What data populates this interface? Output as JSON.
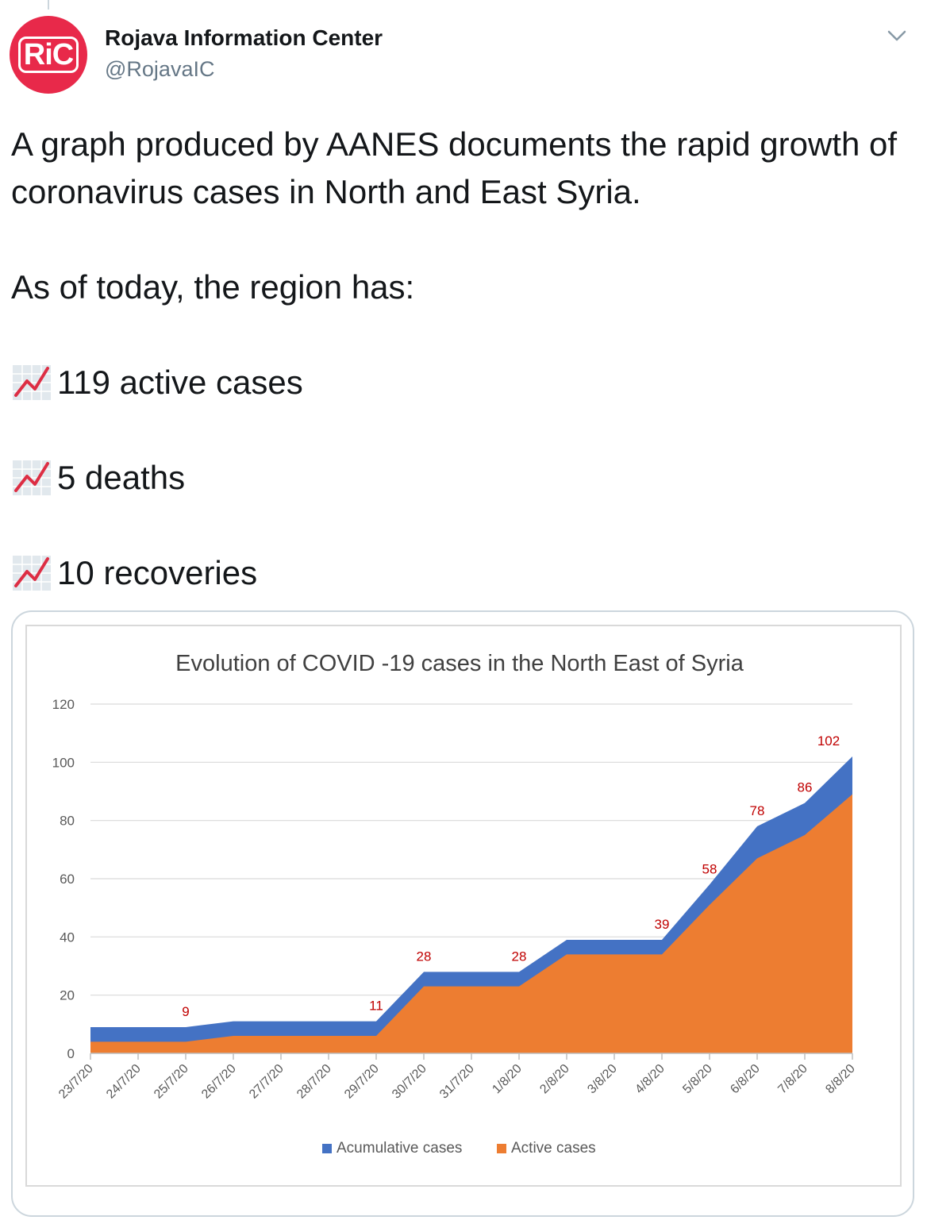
{
  "tweet": {
    "author_name": "Rojava Information Center",
    "handle": "@RojavaIC",
    "avatar_text": "RiC",
    "avatar_color": "#e8294a",
    "paragraphs": [
      "A graph produced by AANES documents the rapid growth of coronavirus cases in North and East Syria.",
      "As of today, the region has:"
    ],
    "stats": [
      {
        "icon": "chart-increasing-icon",
        "text": "119 active cases"
      },
      {
        "icon": "chart-increasing-icon",
        "text": "5 deaths"
      },
      {
        "icon": "chart-increasing-icon",
        "text": "10 recoveries"
      }
    ]
  },
  "chart_data": {
    "type": "area",
    "title": "Evolution of COVID -19 cases in the North East of Syria",
    "categories": [
      "23/7/20",
      "24/7/20",
      "25/7/20",
      "26/7/20",
      "27/7/20",
      "28/7/20",
      "29/7/20",
      "30/7/20",
      "31/7/20",
      "1/8/20",
      "2/8/20",
      "3/8/20",
      "4/8/20",
      "5/8/20",
      "6/8/20",
      "7/8/20",
      "8/8/20"
    ],
    "ylim": [
      0,
      120
    ],
    "yticks": [
      0,
      20,
      40,
      60,
      80,
      100,
      120
    ],
    "grid": true,
    "legend_position": "bottom",
    "series": [
      {
        "name": "Acumulative cases",
        "color": "#4472c4",
        "values": [
          9,
          9,
          9,
          11,
          11,
          11,
          11,
          28,
          28,
          28,
          39,
          39,
          39,
          58,
          78,
          86,
          102
        ]
      },
      {
        "name": "Active cases",
        "color": "#ed7d31",
        "values": [
          4,
          4,
          4,
          6,
          6,
          6,
          6,
          23,
          23,
          23,
          34,
          34,
          34,
          51,
          67,
          75,
          89
        ]
      }
    ],
    "data_labels": [
      {
        "category": "25/7/20",
        "value": 9
      },
      {
        "category": "29/7/20",
        "value": 11
      },
      {
        "category": "30/7/20",
        "value": 28
      },
      {
        "category": "1/8/20",
        "value": 28
      },
      {
        "category": "4/8/20",
        "value": 39
      },
      {
        "category": "5/8/20",
        "value": 58
      },
      {
        "category": "6/8/20",
        "value": 78
      },
      {
        "category": "7/8/20",
        "value": 86
      },
      {
        "category": "8/8/20",
        "value": 102
      }
    ],
    "data_label_color": "#c00000"
  }
}
